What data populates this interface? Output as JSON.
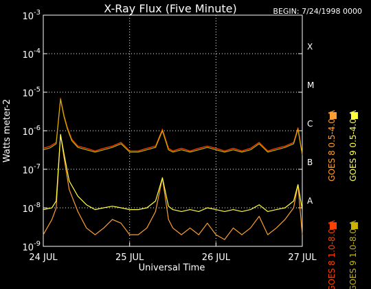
{
  "chart_data": {
    "type": "line",
    "title": "X-Ray Flux (Five Minute)",
    "begin_label": "BEGIN: 7/24/1998 0000",
    "xlabel": "Universal Time",
    "ylabel": "Watts meter-2",
    "y_scale": "log",
    "ylim": [
      1e-09,
      0.001
    ],
    "xlim_days": [
      24,
      27
    ],
    "x_ticks": [
      "24 JUL",
      "25 JUL",
      "26 JUL",
      "27 JUL"
    ],
    "y_ticks": [
      {
        "mantissa": "10",
        "exp": "-9"
      },
      {
        "mantissa": "10",
        "exp": "-8"
      },
      {
        "mantissa": "10",
        "exp": "-7"
      },
      {
        "mantissa": "10",
        "exp": "-6"
      },
      {
        "mantissa": "10",
        "exp": "-5"
      },
      {
        "mantissa": "10",
        "exp": "-4"
      },
      {
        "mantissa": "10",
        "exp": "-3"
      }
    ],
    "flare_classes": [
      {
        "label": "A",
        "flux": 1e-08
      },
      {
        "label": "B",
        "flux": 1e-07
      },
      {
        "label": "C",
        "flux": 1e-06
      },
      {
        "label": "M",
        "flux": 1e-05
      },
      {
        "label": "X",
        "flux": 0.0001
      }
    ],
    "grid": true,
    "legend_position": "right",
    "series": [
      {
        "name": "GOES 8 1.0-8.0 A",
        "color": "#ff4000",
        "x_days": [
          24.0,
          24.08,
          24.15,
          24.2,
          24.24,
          24.28,
          24.33,
          24.4,
          24.5,
          24.6,
          24.7,
          24.8,
          24.9,
          25.0,
          25.1,
          25.2,
          25.3,
          25.38,
          25.45,
          25.5,
          25.6,
          25.7,
          25.8,
          25.9,
          26.0,
          26.1,
          26.2,
          26.3,
          26.4,
          26.5,
          26.6,
          26.7,
          26.8,
          26.9,
          26.95,
          27.0
        ],
        "values": [
          3.5e-07,
          4e-07,
          5e-07,
          7e-06,
          2.5e-06,
          1.2e-06,
          6e-07,
          4e-07,
          3.5e-07,
          3e-07,
          3.5e-07,
          4e-07,
          5e-07,
          3e-07,
          3e-07,
          3.5e-07,
          4e-07,
          1.1e-06,
          3.5e-07,
          3e-07,
          3.5e-07,
          3e-07,
          3.5e-07,
          4e-07,
          3.5e-07,
          3e-07,
          3.5e-07,
          3e-07,
          3.5e-07,
          5e-07,
          3e-07,
          3.5e-07,
          4e-07,
          5e-07,
          1.2e-06,
          2.5e-07
        ]
      },
      {
        "name": "GOES 8 0.5-4.0 A",
        "color": "#ffa030",
        "x_days": [
          24.0,
          24.1,
          24.15,
          24.2,
          24.24,
          24.3,
          24.4,
          24.5,
          24.6,
          24.7,
          24.8,
          24.9,
          25.0,
          25.1,
          25.2,
          25.3,
          25.38,
          25.45,
          25.5,
          25.6,
          25.7,
          25.8,
          25.9,
          26.0,
          26.1,
          26.2,
          26.3,
          26.4,
          26.5,
          26.6,
          26.7,
          26.8,
          26.9,
          26.95,
          27.0
        ],
        "values": [
          2e-09,
          5e-09,
          1e-08,
          8e-07,
          2e-07,
          3e-08,
          8e-09,
          3e-09,
          2e-09,
          3e-09,
          5e-09,
          4e-09,
          2e-09,
          2e-09,
          3e-09,
          8e-09,
          6e-08,
          5e-09,
          3e-09,
          2e-09,
          3e-09,
          2e-09,
          4e-09,
          2e-09,
          1.5e-09,
          3e-09,
          2e-09,
          3e-09,
          6e-09,
          2e-09,
          3e-09,
          5e-09,
          1e-08,
          4e-08,
          2e-09
        ]
      },
      {
        "name": "GOES 9 1.0-8.0 A",
        "color": "#c8b400",
        "x_days": [
          24.0,
          24.08,
          24.15,
          24.2,
          24.24,
          24.28,
          24.33,
          24.4,
          24.5,
          24.6,
          24.7,
          24.8,
          24.9,
          25.0,
          25.1,
          25.2,
          25.3,
          25.38,
          25.45,
          25.5,
          25.6,
          25.7,
          25.8,
          25.9,
          26.0,
          26.1,
          26.2,
          26.3,
          26.4,
          26.5,
          26.6,
          26.7,
          26.8,
          26.9,
          26.95,
          27.0
        ],
        "values": [
          3.2e-07,
          3.6e-07,
          4.6e-07,
          6.5e-06,
          2.3e-06,
          1.1e-06,
          5.5e-07,
          3.7e-07,
          3.2e-07,
          2.8e-07,
          3.2e-07,
          3.7e-07,
          4.6e-07,
          2.8e-07,
          2.8e-07,
          3.2e-07,
          3.7e-07,
          1e-06,
          3.2e-07,
          2.8e-07,
          3.2e-07,
          2.8e-07,
          3.2e-07,
          3.7e-07,
          3.2e-07,
          2.8e-07,
          3.2e-07,
          2.8e-07,
          3.2e-07,
          4.6e-07,
          2.8e-07,
          3.2e-07,
          3.7e-07,
          4.6e-07,
          1.1e-06,
          2.3e-07
        ]
      },
      {
        "name": "GOES 9 0.5-4.0 A",
        "color": "#ffff40",
        "x_days": [
          24.0,
          24.1,
          24.15,
          24.2,
          24.24,
          24.3,
          24.4,
          24.5,
          24.6,
          24.7,
          24.8,
          24.9,
          25.0,
          25.1,
          25.2,
          25.3,
          25.38,
          25.45,
          25.5,
          25.6,
          25.7,
          25.8,
          25.9,
          26.0,
          26.1,
          26.2,
          26.3,
          26.4,
          26.5,
          26.6,
          26.7,
          26.8,
          26.9,
          26.95,
          27.0
        ],
        "values": [
          9e-09,
          1e-08,
          1.5e-08,
          8e-07,
          2.5e-07,
          5e-08,
          2e-08,
          1.2e-08,
          9e-09,
          1e-08,
          1.1e-08,
          1e-08,
          9e-09,
          9e-09,
          1e-08,
          1.5e-08,
          6e-08,
          1.1e-08,
          9e-09,
          8e-09,
          9e-09,
          8e-09,
          1e-08,
          9e-09,
          8e-09,
          9e-09,
          8e-09,
          9e-09,
          1.2e-08,
          8e-09,
          9e-09,
          1e-08,
          1.5e-08,
          4e-08,
          9e-09
        ]
      }
    ]
  }
}
